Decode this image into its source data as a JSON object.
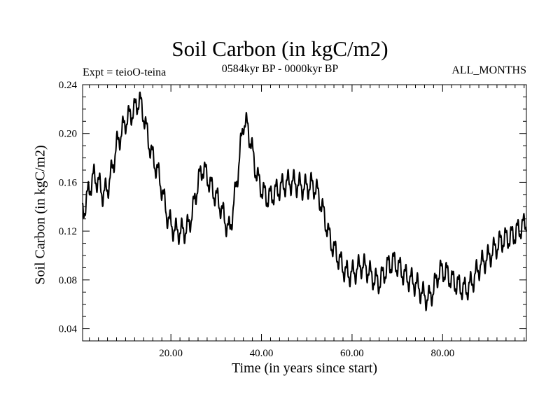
{
  "header": {
    "title": "Soil Carbon (in kgC/m2)",
    "subtitle": "0584kyr BP - 0000kyr BP",
    "expt": "Expt = teioO-teina",
    "months": "ALL_MONTHS"
  },
  "chart_data": {
    "type": "line",
    "title": "Soil Carbon (in kgC/m2)",
    "xlabel": "Time (in years since start)",
    "ylabel": "Soil Carbon (in kgC/m2)",
    "xlim": [
      0.5,
      98.5
    ],
    "ylim": [
      0.03,
      0.24
    ],
    "x_ticks": [
      20,
      40,
      60,
      80
    ],
    "x_tick_labels": [
      "20.00",
      "40.00",
      "60.00",
      "80.00"
    ],
    "y_ticks": [
      0.04,
      0.08,
      0.12,
      0.16,
      0.2,
      0.24
    ],
    "y_tick_labels": [
      "0.04",
      "0.08",
      "0.12",
      "0.16",
      "0.20",
      "0.24"
    ],
    "grid": false,
    "line_color": "#000000",
    "series": [
      {
        "name": "Soil Carbon",
        "x": [
          0.5,
          1,
          2,
          3,
          4,
          5,
          6,
          7,
          8,
          9,
          10,
          11,
          12,
          13,
          14,
          15,
          16,
          17,
          18,
          19,
          20,
          21,
          22,
          23,
          24,
          25,
          26,
          27,
          28,
          29,
          30,
          31,
          32,
          33,
          34,
          35,
          36,
          37,
          38,
          39,
          40,
          41,
          42,
          43,
          44,
          45,
          46,
          47,
          48,
          49,
          50,
          51,
          52,
          53,
          54,
          55,
          56,
          57,
          58,
          59,
          60,
          61,
          62,
          63,
          64,
          65,
          66,
          67,
          68,
          69,
          70,
          71,
          72,
          73,
          74,
          75,
          76,
          77,
          78,
          79,
          80,
          81,
          82,
          83,
          84,
          85,
          86,
          87,
          88,
          89,
          90,
          91,
          92,
          93,
          94,
          95,
          96,
          97,
          98,
          98.5
        ],
        "values": [
          0.135,
          0.14,
          0.155,
          0.165,
          0.16,
          0.15,
          0.155,
          0.17,
          0.19,
          0.2,
          0.21,
          0.215,
          0.22,
          0.228,
          0.215,
          0.195,
          0.18,
          0.17,
          0.155,
          0.135,
          0.125,
          0.12,
          0.12,
          0.12,
          0.125,
          0.14,
          0.16,
          0.172,
          0.165,
          0.155,
          0.148,
          0.14,
          0.128,
          0.12,
          0.145,
          0.175,
          0.21,
          0.205,
          0.185,
          0.165,
          0.155,
          0.148,
          0.148,
          0.152,
          0.155,
          0.158,
          0.16,
          0.16,
          0.158,
          0.156,
          0.156,
          0.158,
          0.155,
          0.145,
          0.13,
          0.115,
          0.105,
          0.098,
          0.09,
          0.085,
          0.085,
          0.088,
          0.092,
          0.09,
          0.085,
          0.08,
          0.078,
          0.085,
          0.092,
          0.095,
          0.092,
          0.087,
          0.082,
          0.08,
          0.077,
          0.072,
          0.066,
          0.065,
          0.072,
          0.085,
          0.088,
          0.085,
          0.08,
          0.077,
          0.074,
          0.072,
          0.075,
          0.082,
          0.09,
          0.095,
          0.098,
          0.103,
          0.108,
          0.112,
          0.114,
          0.115,
          0.118,
          0.122,
          0.125,
          0.128
        ]
      }
    ],
    "oscillation_amplitude": 0.008,
    "oscillation_period": 1.3
  }
}
